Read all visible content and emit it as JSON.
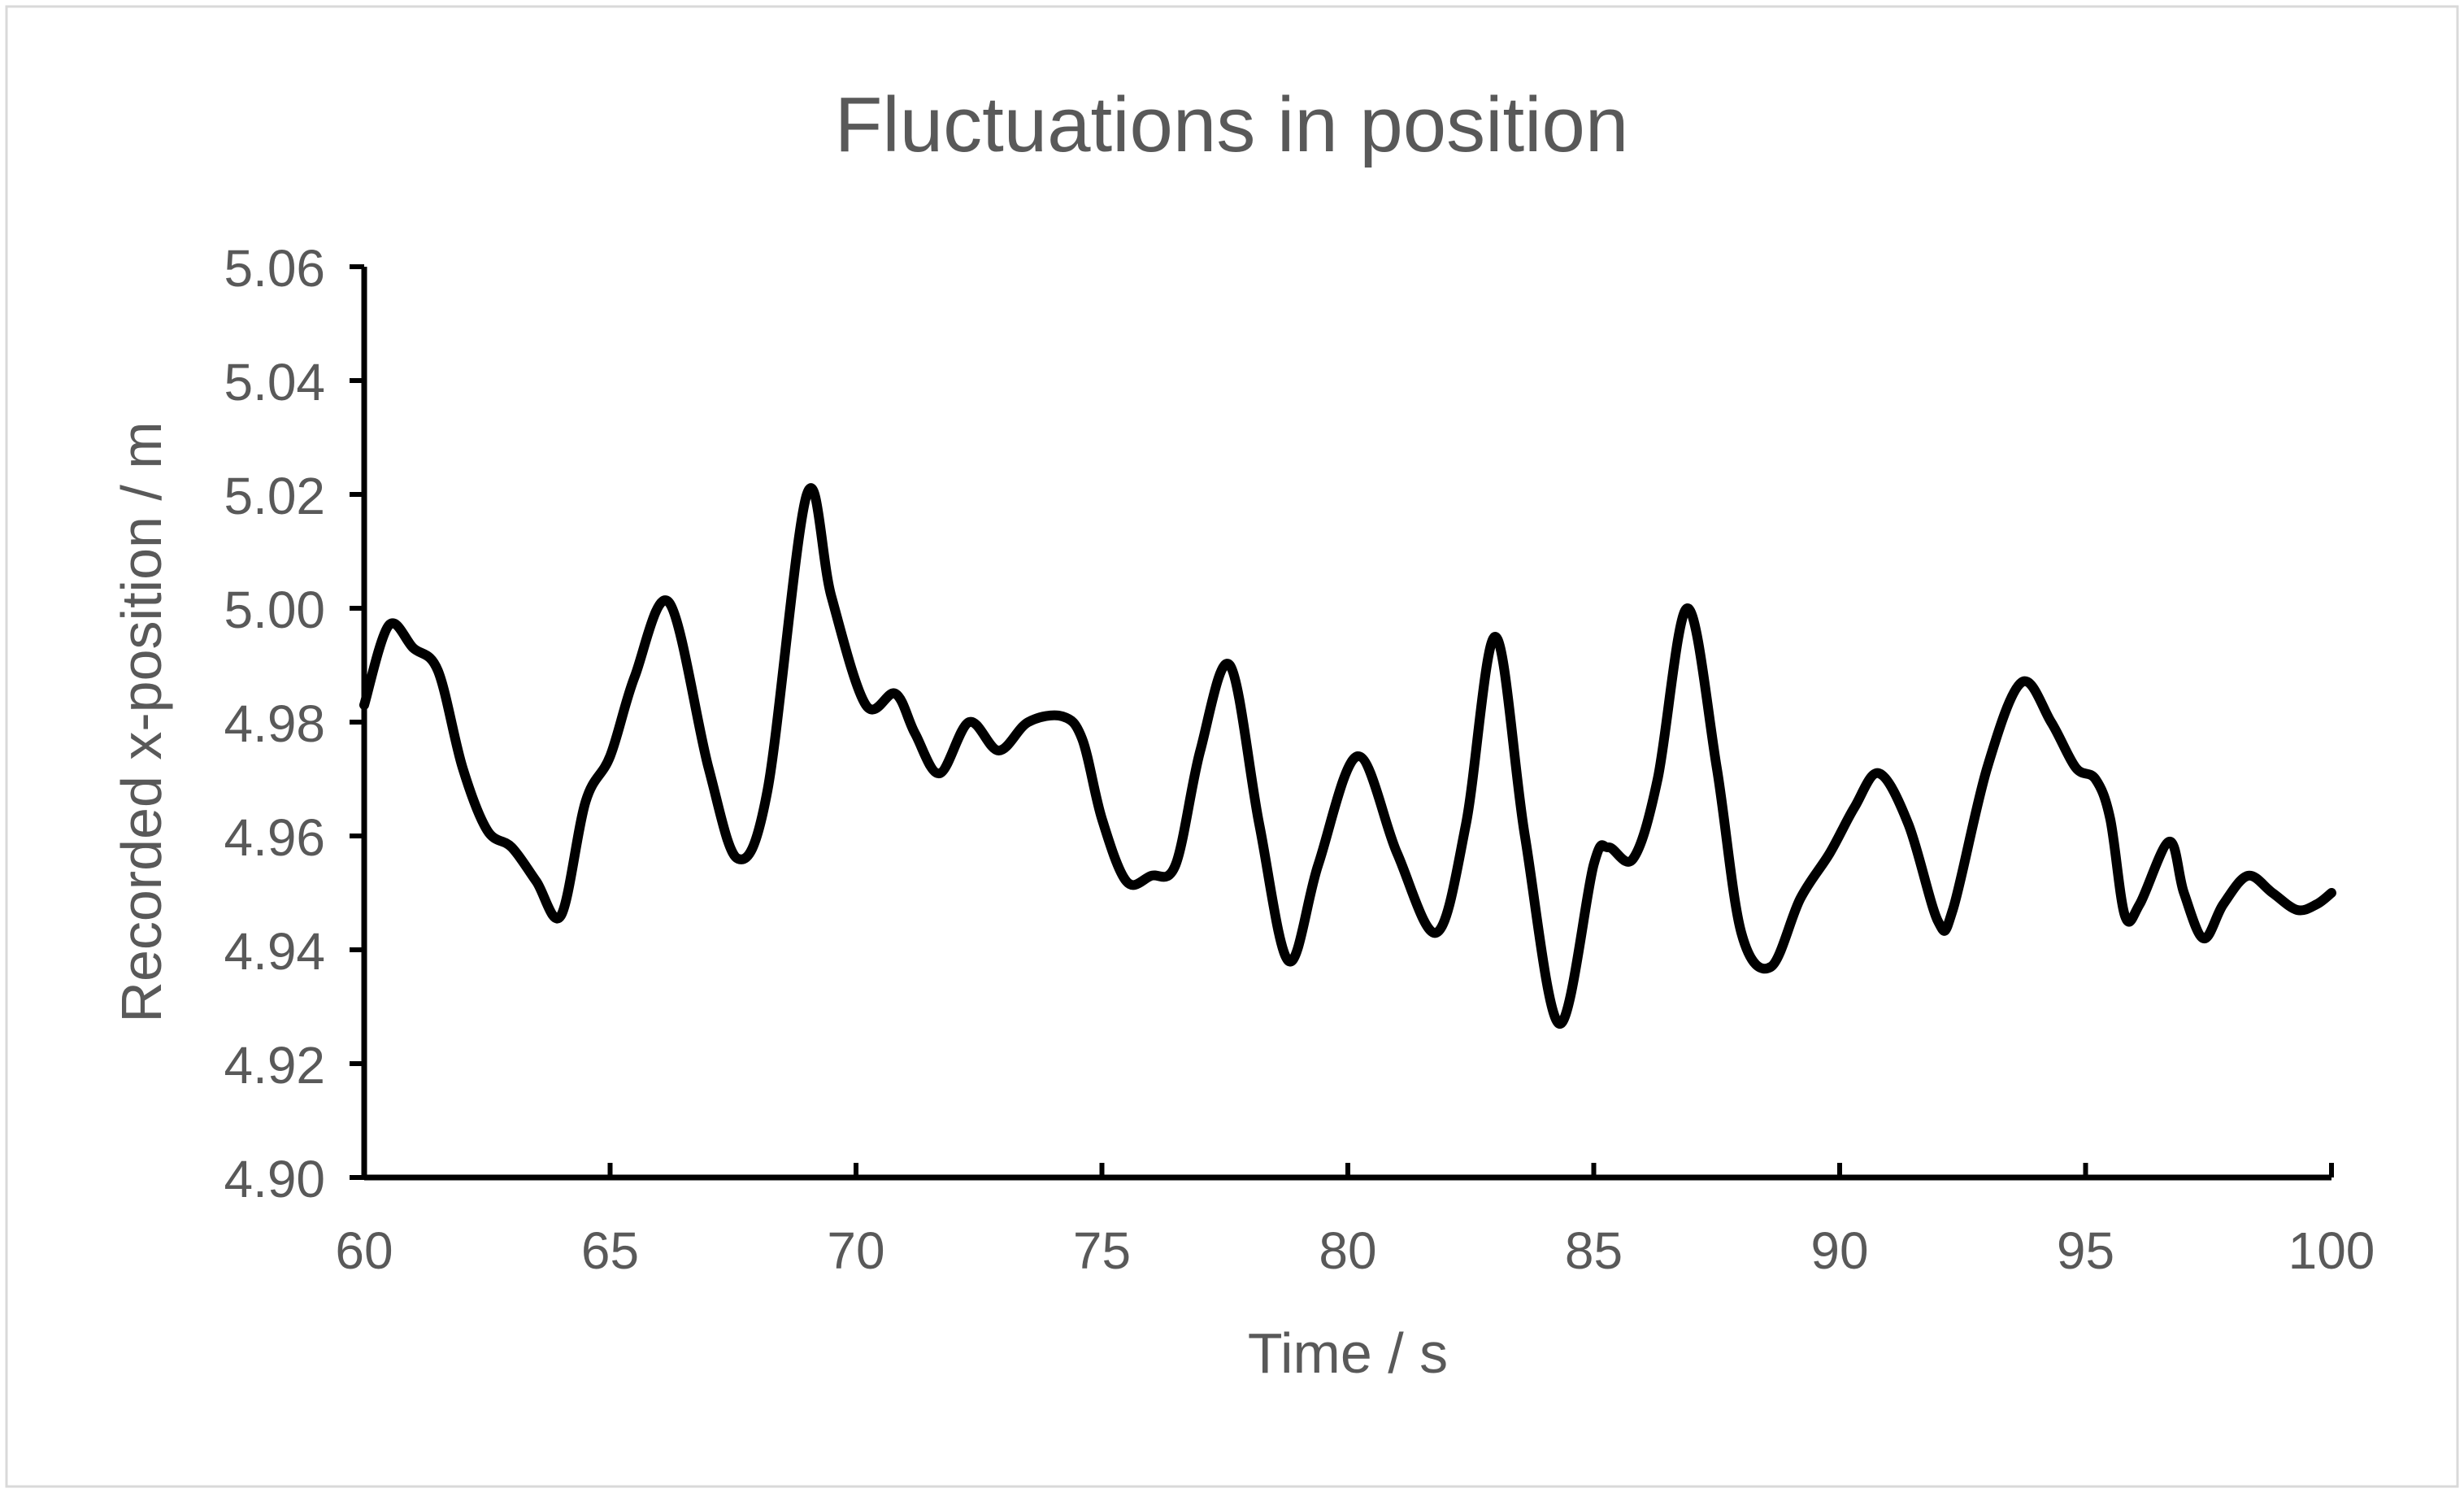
{
  "chart_data": {
    "type": "line",
    "title": "Fluctuations in position",
    "xlabel": "Time / s",
    "ylabel": "Recorded x-position / m",
    "xlim": [
      60,
      100
    ],
    "ylim": [
      4.9,
      5.06
    ],
    "x_ticks": [
      "60",
      "65",
      "70",
      "75",
      "80",
      "85",
      "90",
      "95",
      "100"
    ],
    "y_ticks": [
      "4.90",
      "4.92",
      "4.94",
      "4.96",
      "4.98",
      "5.00",
      "5.02",
      "5.04",
      "5.06"
    ],
    "grid": false,
    "legend": "none",
    "line_color": "#000000",
    "series": [
      {
        "x": [
          60.0,
          60.5,
          61.0,
          61.5,
          62.0,
          62.5,
          63.0,
          63.5,
          64.0,
          64.5,
          65.0,
          65.5,
          66.2,
          67.0,
          67.6,
          68.2,
          69.0,
          69.5,
          70.2,
          70.8,
          71.2,
          71.7,
          72.3,
          72.9,
          73.5,
          74.2,
          74.6,
          75.0,
          75.5,
          76.0,
          76.5,
          77.0,
          77.6,
          78.2,
          78.8,
          79.4,
          80.2,
          81.0,
          81.8,
          82.4,
          83.0,
          83.6,
          84.3,
          85.0,
          85.3,
          85.8,
          86.3,
          86.9,
          87.5,
          88.0,
          88.6,
          89.2,
          89.8,
          90.3,
          90.8,
          91.4,
          92.0,
          92.3,
          93.0,
          93.7,
          94.3,
          94.8,
          95.2,
          95.5,
          95.8,
          96.1,
          96.7,
          97.0,
          97.4,
          97.8,
          98.3,
          98.8,
          99.3,
          99.7,
          100.0
        ],
        "y": [
          4.983,
          4.997,
          4.993,
          4.989,
          4.972,
          4.961,
          4.958,
          4.952,
          4.946,
          4.966,
          4.974,
          4.988,
          5.001,
          4.972,
          4.956,
          4.968,
          5.02,
          5.002,
          4.983,
          4.985,
          4.978,
          4.971,
          4.98,
          4.975,
          4.98,
          4.981,
          4.977,
          4.963,
          4.952,
          4.953,
          4.955,
          4.975,
          4.99,
          4.962,
          4.938,
          4.955,
          4.974,
          4.957,
          4.943,
          4.962,
          4.995,
          4.96,
          4.927,
          4.955,
          4.958,
          4.956,
          4.97,
          5.0,
          4.972,
          4.943,
          4.937,
          4.949,
          4.957,
          4.965,
          4.971,
          4.962,
          4.945,
          4.947,
          4.972,
          4.987,
          4.98,
          4.972,
          4.97,
          4.963,
          4.946,
          4.948,
          4.959,
          4.95,
          4.942,
          4.948,
          4.953,
          4.95,
          4.947,
          4.948,
          4.95
        ]
      }
    ]
  }
}
